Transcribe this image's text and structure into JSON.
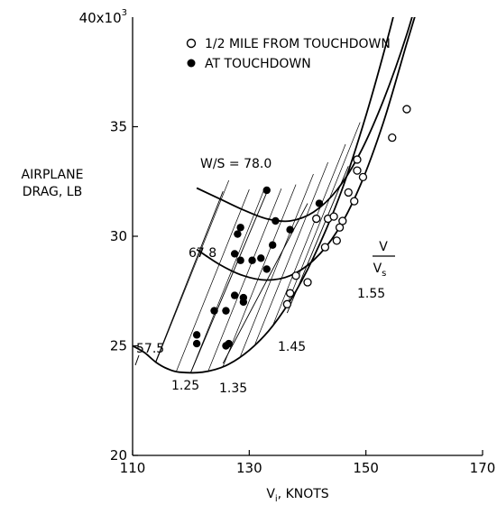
{
  "chart_data": {
    "type": "scatter",
    "title": "",
    "xlabel": "V",
    "xlabel_subscript": "i",
    "xlabel_units": ", KNOTS",
    "ylabel_lines": [
      "AIRPLANE",
      "DRAG, LB"
    ],
    "y_multiplier_label": "40x10",
    "y_multiplier_exp": "3",
    "xlim": [
      110,
      170
    ],
    "ylim": [
      20,
      40
    ],
    "x_ticks": [
      110,
      130,
      150,
      170
    ],
    "y_ticks": [
      20,
      25,
      30,
      35
    ],
    "x_tick_labels": [
      "110",
      "130",
      "150",
      "170"
    ],
    "y_tick_labels": [
      "20",
      "25",
      "30",
      "35"
    ],
    "grid": false,
    "legend": {
      "position": "top",
      "entries": [
        {
          "marker": "open-circle",
          "label": "1/2 MILE FROM TOUCHDOWN"
        },
        {
          "marker": "filled-circle",
          "label": "AT TOUCHDOWN"
        }
      ]
    },
    "series": [
      {
        "name": "1/2 MILE FROM TOUCHDOWN",
        "marker": "open",
        "points": [
          [
            136.5,
            26.9
          ],
          [
            137,
            27.4
          ],
          [
            138,
            28.2
          ],
          [
            140,
            27.9
          ],
          [
            141.5,
            30.8
          ],
          [
            143,
            29.5
          ],
          [
            143.5,
            30.8
          ],
          [
            144.5,
            30.9
          ],
          [
            145,
            29.8
          ],
          [
            145.5,
            30.4
          ],
          [
            146,
            30.7
          ],
          [
            147,
            32
          ],
          [
            148,
            31.6
          ],
          [
            148.5,
            33
          ],
          [
            148.5,
            33.5
          ],
          [
            149.5,
            32.7
          ],
          [
            154.5,
            34.5
          ],
          [
            157,
            35.8
          ]
        ]
      },
      {
        "name": "AT TOUCHDOWN",
        "marker": "filled",
        "points": [
          [
            121,
            25.5
          ],
          [
            121,
            25.1
          ],
          [
            124,
            26.6
          ],
          [
            126,
            25
          ],
          [
            126.5,
            25.1
          ],
          [
            126,
            26.6
          ],
          [
            127.5,
            27.3
          ],
          [
            127.5,
            29.2
          ],
          [
            128,
            30.1
          ],
          [
            128.5,
            28.9
          ],
          [
            128.5,
            30.4
          ],
          [
            129,
            27
          ],
          [
            129,
            27.2
          ],
          [
            130.5,
            28.9
          ],
          [
            132,
            29.0
          ],
          [
            133,
            32.1
          ],
          [
            133,
            28.5
          ],
          [
            134,
            29.6
          ],
          [
            134.5,
            30.7
          ],
          [
            137,
            30.3
          ],
          [
            142,
            31.5
          ]
        ]
      }
    ],
    "curves": {
      "wing_loading": [
        {
          "label": "W/S = 78.0",
          "points": [
            [
              121,
              32.2
            ],
            [
              125,
              31.7
            ],
            [
              129,
              31.2
            ],
            [
              133,
              30.8
            ],
            [
              137,
              30.7
            ],
            [
              141,
              31.1
            ],
            [
              145,
              32.1
            ],
            [
              149,
              33.8
            ],
            [
              153,
              36.2
            ],
            [
              157,
              39.2
            ],
            [
              160,
              42.0
            ]
          ]
        },
        {
          "label": "67.8",
          "points": [
            [
              121,
              29.4
            ],
            [
              125,
              28.7
            ],
            [
              129,
              28.2
            ],
            [
              133,
              28.0
            ],
            [
              137,
              28.2
            ],
            [
              141,
              28.9
            ],
            [
              145,
              30.2
            ],
            [
              149,
              32.3
            ],
            [
              153,
              35.2
            ],
            [
              157,
              38.8
            ],
            [
              159.5,
              41.0
            ]
          ]
        },
        {
          "label": "57.5",
          "points": [
            [
              110,
              25.0
            ],
            [
              112,
              24.7
            ],
            [
              114,
              24.25
            ],
            [
              116,
              23.95
            ],
            [
              118,
              23.8
            ],
            [
              122,
              23.8
            ],
            [
              126,
              24.1
            ],
            [
              130,
              24.8
            ],
            [
              134,
              25.9
            ],
            [
              138,
              27.5
            ],
            [
              142,
              29.6
            ],
            [
              146,
              32.2
            ],
            [
              150,
              35.5
            ],
            [
              154,
              39.3
            ],
            [
              156.5,
              42.0
            ]
          ]
        }
      ],
      "speed_ratio": [
        {
          "label": "1.25",
          "points": [
            [
              114,
              24.3
            ],
            [
              125.5,
              32.05
            ]
          ]
        },
        {
          "label": "1.35",
          "points": [
            [
              120,
              23.8
            ],
            [
              133,
              32.0
            ]
          ]
        },
        {
          "label": "1.45",
          "points": [
            [
              125.5,
              24.2
            ],
            [
              140,
              31.5
            ]
          ]
        },
        {
          "label": "1.55",
          "points": [
            [
              136.5,
              26.5
            ],
            [
              147,
              33.2
            ]
          ]
        }
      ],
      "speed_ratio_axis_label": {
        "numerator": "V",
        "denominator": "V",
        "subscript": "s"
      }
    }
  }
}
